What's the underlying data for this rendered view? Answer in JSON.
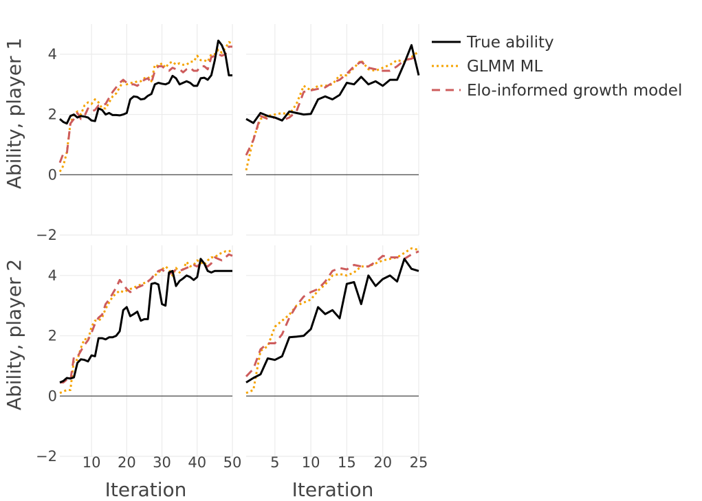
{
  "chart_data": {
    "type": "line",
    "legend": [
      {
        "name": "True ability",
        "color": "#000000",
        "dash": "solid"
      },
      {
        "name": "GLMM ML",
        "color": "#f5a300",
        "dash": "dot"
      },
      {
        "name": "Elo-informed growth model",
        "color": "#cd5c5c",
        "dash": "dash"
      }
    ],
    "legend_position": "top-right",
    "ylabels": [
      "Ability, player 1",
      "Ability, player 2"
    ],
    "xlabel": "Iteration",
    "ylim": [
      -2,
      5
    ],
    "yticks": [
      -2,
      0,
      2,
      4
    ],
    "panels": [
      {
        "row": 0,
        "col": 0,
        "xlim": [
          1,
          50
        ],
        "xticks": [
          10,
          20,
          30,
          40,
          50
        ],
        "series": [
          {
            "name": "True ability",
            "x": [
              1,
              2,
              3,
              4,
              5,
              6,
              7,
              8,
              9,
              10,
              11,
              12,
              13,
              14,
              15,
              16,
              17,
              18,
              19,
              20,
              21,
              22,
              23,
              24,
              25,
              26,
              27,
              28,
              29,
              30,
              31,
              32,
              33,
              34,
              35,
              36,
              37,
              38,
              39,
              40,
              41,
              42,
              43,
              44,
              45,
              46,
              47,
              48,
              49,
              50
            ],
            "y": [
              1.85,
              1.75,
              1.7,
              1.95,
              2.0,
              1.9,
              1.95,
              1.93,
              1.9,
              1.8,
              1.78,
              2.2,
              2.15,
              2.0,
              2.05,
              1.98,
              1.98,
              1.97,
              2.0,
              2.05,
              2.5,
              2.6,
              2.58,
              2.5,
              2.52,
              2.62,
              2.68,
              3.0,
              3.05,
              3.02,
              3.0,
              3.05,
              3.28,
              3.2,
              3.0,
              3.05,
              3.1,
              3.05,
              2.95,
              2.95,
              3.2,
              3.22,
              3.15,
              3.3,
              3.8,
              4.45,
              4.3,
              4.0,
              3.3,
              3.3
            ]
          },
          {
            "name": "GLMM ML",
            "x": [
              1,
              2,
              3,
              4,
              5,
              6,
              7,
              8,
              9,
              10,
              11,
              12,
              13,
              14,
              15,
              16,
              17,
              18,
              19,
              20,
              21,
              22,
              23,
              24,
              25,
              26,
              27,
              28,
              29,
              30,
              31,
              32,
              33,
              34,
              35,
              36,
              37,
              38,
              39,
              40,
              41,
              42,
              43,
              44,
              45,
              46,
              47,
              48,
              49,
              50
            ],
            "y": [
              0.1,
              0.3,
              0.75,
              1.7,
              2.0,
              2.1,
              2.0,
              2.3,
              2.4,
              2.35,
              2.5,
              2.4,
              2.2,
              2.2,
              2.4,
              2.6,
              2.7,
              2.9,
              3.1,
              3.0,
              3.05,
              3.05,
              3.1,
              3.1,
              3.2,
              3.25,
              3.1,
              3.65,
              3.6,
              3.7,
              3.55,
              3.7,
              3.75,
              3.65,
              3.7,
              3.65,
              3.65,
              3.75,
              3.75,
              3.95,
              3.8,
              3.8,
              3.75,
              4.0,
              4.0,
              4.15,
              4.05,
              4.2,
              4.4,
              4.35
            ]
          },
          {
            "name": "Elo-informed growth model",
            "x": [
              1,
              2,
              3,
              4,
              5,
              6,
              7,
              8,
              9,
              10,
              11,
              12,
              13,
              14,
              15,
              16,
              17,
              18,
              19,
              20,
              21,
              22,
              23,
              24,
              25,
              26,
              27,
              28,
              29,
              30,
              31,
              32,
              33,
              34,
              35,
              36,
              37,
              38,
              39,
              40,
              41,
              42,
              43,
              44,
              45,
              46,
              47,
              48,
              49,
              50
            ],
            "y": [
              0.4,
              0.7,
              0.7,
              1.7,
              1.85,
              2.05,
              1.85,
              1.95,
              2.2,
              2.1,
              2.15,
              2.3,
              2.3,
              2.35,
              2.55,
              2.75,
              2.9,
              3.05,
              3.15,
              3.05,
              3.0,
              3.0,
              2.95,
              3.05,
              3.15,
              3.2,
              3.05,
              3.45,
              3.6,
              3.6,
              3.5,
              3.45,
              3.55,
              3.5,
              3.5,
              3.4,
              3.5,
              3.55,
              3.45,
              3.45,
              3.6,
              3.6,
              3.5,
              3.9,
              3.95,
              4.0,
              3.95,
              4.0,
              4.25,
              4.25
            ]
          }
        ]
      },
      {
        "row": 0,
        "col": 1,
        "xlim": [
          1,
          25
        ],
        "xticks": [
          5,
          10,
          15,
          20,
          25
        ],
        "series": [
          {
            "name": "True ability",
            "x": [
              1,
              2,
              3,
              4,
              5,
              6,
              7,
              8,
              9,
              10,
              11,
              12,
              13,
              14,
              15,
              16,
              17,
              18,
              19,
              20,
              21,
              22,
              23,
              24,
              25
            ],
            "y": [
              1.85,
              1.72,
              2.05,
              1.95,
              1.9,
              1.8,
              2.1,
              2.05,
              2.0,
              2.02,
              2.5,
              2.6,
              2.5,
              2.65,
              3.05,
              3.0,
              3.25,
              3.0,
              3.1,
              2.95,
              3.15,
              3.15,
              3.7,
              4.3,
              3.3
            ]
          },
          {
            "name": "GLMM ML",
            "x": [
              1,
              2,
              3,
              4,
              5,
              6,
              7,
              8,
              9,
              10,
              11,
              12,
              13,
              14,
              15,
              16,
              17,
              18,
              19,
              20,
              21,
              22,
              23,
              24,
              25
            ],
            "y": [
              0.15,
              1.2,
              1.85,
              1.95,
              2.0,
              2.05,
              2.0,
              2.35,
              2.95,
              2.8,
              2.95,
              2.95,
              3.0,
              3.3,
              3.3,
              3.55,
              3.8,
              3.5,
              3.45,
              3.55,
              3.65,
              3.8,
              3.75,
              3.9,
              4.1
            ]
          },
          {
            "name": "Elo-informed growth model",
            "x": [
              1,
              2,
              3,
              4,
              5,
              6,
              7,
              8,
              9,
              10,
              11,
              12,
              13,
              14,
              15,
              16,
              17,
              18,
              19,
              20,
              21,
              22,
              23,
              24,
              25
            ],
            "y": [
              0.65,
              1.15,
              1.95,
              1.85,
              1.9,
              1.8,
              1.9,
              2.1,
              2.75,
              2.8,
              2.85,
              2.9,
              3.05,
              3.15,
              3.35,
              3.6,
              3.75,
              3.55,
              3.5,
              3.45,
              3.45,
              3.6,
              3.8,
              3.85,
              3.95
            ]
          }
        ]
      },
      {
        "row": 1,
        "col": 0,
        "xlim": [
          1,
          50
        ],
        "xticks": [
          10,
          20,
          30,
          40,
          50
        ],
        "series": [
          {
            "name": "True ability",
            "x": [
              1,
              2,
              3,
              4,
              5,
              6,
              7,
              8,
              9,
              10,
              11,
              12,
              13,
              14,
              15,
              16,
              17,
              18,
              19,
              20,
              21,
              22,
              23,
              24,
              25,
              26,
              27,
              28,
              29,
              30,
              31,
              32,
              33,
              34,
              35,
              36,
              37,
              38,
              39,
              40,
              41,
              42,
              43,
              44,
              45,
              46,
              47,
              48,
              49,
              50
            ],
            "y": [
              0.45,
              0.5,
              0.6,
              0.58,
              0.62,
              1.1,
              1.22,
              1.2,
              1.15,
              1.35,
              1.32,
              1.92,
              1.92,
              1.88,
              1.95,
              1.95,
              2.0,
              2.15,
              2.85,
              2.95,
              2.65,
              2.72,
              2.8,
              2.5,
              2.55,
              2.55,
              3.72,
              3.75,
              3.7,
              3.05,
              3.0,
              4.1,
              4.15,
              3.65,
              3.82,
              3.9,
              4.0,
              3.95,
              3.85,
              3.95,
              4.55,
              4.4,
              4.15,
              4.1,
              4.15,
              4.15,
              4.15,
              4.15,
              4.15,
              4.15
            ]
          },
          {
            "name": "GLMM ML",
            "x": [
              1,
              2,
              3,
              4,
              5,
              6,
              7,
              8,
              9,
              10,
              11,
              12,
              13,
              14,
              15,
              16,
              17,
              18,
              19,
              20,
              21,
              22,
              23,
              24,
              25,
              26,
              27,
              28,
              29,
              30,
              31,
              32,
              33,
              34,
              35,
              36,
              37,
              38,
              39,
              40,
              41,
              42,
              43,
              44,
              45,
              46,
              47,
              48,
              49,
              50
            ],
            "y": [
              0.1,
              0.15,
              0.2,
              0.2,
              1.2,
              1.2,
              1.6,
              1.9,
              1.85,
              2.3,
              2.5,
              2.5,
              2.6,
              2.9,
              3.1,
              3.3,
              3.4,
              3.5,
              3.45,
              3.5,
              3.55,
              3.6,
              3.65,
              3.7,
              3.75,
              3.8,
              3.9,
              4.0,
              4.1,
              4.2,
              4.3,
              4.2,
              4.0,
              4.25,
              4.1,
              4.2,
              4.45,
              4.3,
              4.35,
              4.5,
              4.45,
              4.35,
              4.5,
              4.6,
              4.6,
              4.7,
              4.75,
              4.8,
              4.8,
              4.85
            ]
          },
          {
            "name": "Elo-informed growth model",
            "x": [
              1,
              2,
              3,
              4,
              5,
              6,
              7,
              8,
              9,
              10,
              11,
              12,
              13,
              14,
              15,
              16,
              17,
              18,
              19,
              20,
              21,
              22,
              23,
              24,
              25,
              26,
              27,
              28,
              29,
              30,
              31,
              32,
              33,
              34,
              35,
              36,
              37,
              38,
              39,
              40,
              41,
              42,
              43,
              44,
              45,
              46,
              47,
              48,
              49,
              50
            ],
            "y": [
              0.45,
              0.45,
              0.55,
              0.5,
              1.3,
              1.3,
              1.5,
              1.7,
              1.85,
              2.1,
              2.4,
              2.6,
              2.7,
              3.05,
              3.2,
              3.4,
              3.6,
              3.85,
              3.7,
              3.55,
              3.45,
              3.5,
              3.6,
              3.65,
              3.7,
              3.8,
              3.9,
              4.05,
              4.15,
              4.2,
              4.1,
              4.05,
              4.1,
              4.2,
              4.15,
              4.2,
              4.25,
              4.3,
              4.35,
              4.3,
              4.4,
              4.35,
              4.3,
              4.4,
              4.6,
              4.55,
              4.5,
              4.6,
              4.7,
              4.65
            ]
          }
        ]
      },
      {
        "row": 1,
        "col": 1,
        "xlim": [
          1,
          25
        ],
        "xticks": [
          5,
          10,
          15,
          20,
          25
        ],
        "series": [
          {
            "name": "True ability",
            "x": [
              1,
              2,
              3,
              4,
              5,
              6,
              7,
              8,
              9,
              10,
              11,
              12,
              13,
              14,
              15,
              16,
              17,
              18,
              19,
              20,
              21,
              22,
              23,
              24,
              25
            ],
            "y": [
              0.45,
              0.6,
              0.72,
              1.25,
              1.2,
              1.32,
              1.95,
              1.97,
              2.0,
              2.22,
              2.95,
              2.72,
              2.85,
              2.58,
              3.72,
              3.78,
              3.05,
              4.0,
              3.65,
              3.88,
              4.0,
              3.8,
              4.55,
              4.22,
              4.15
            ]
          },
          {
            "name": "GLMM ML",
            "x": [
              1,
              2,
              3,
              4,
              5,
              6,
              7,
              8,
              9,
              10,
              11,
              12,
              13,
              14,
              15,
              16,
              17,
              18,
              19,
              20,
              21,
              22,
              23,
              24,
              25
            ],
            "y": [
              0.1,
              0.2,
              1.5,
              1.65,
              2.3,
              2.5,
              2.7,
              3.0,
              3.1,
              3.2,
              3.5,
              3.7,
              4.0,
              4.05,
              4.0,
              4.1,
              4.3,
              4.3,
              4.4,
              4.5,
              4.55,
              4.6,
              4.75,
              4.9,
              4.85
            ]
          },
          {
            "name": "Elo-informed growth model",
            "x": [
              1,
              2,
              3,
              4,
              5,
              6,
              7,
              8,
              9,
              10,
              11,
              12,
              13,
              14,
              15,
              16,
              17,
              18,
              19,
              20,
              21,
              22,
              23,
              24,
              25
            ],
            "y": [
              0.65,
              0.9,
              1.55,
              1.75,
              1.75,
              2.05,
              2.6,
              3.0,
              3.3,
              3.45,
              3.55,
              3.8,
              4.15,
              4.25,
              4.2,
              4.35,
              4.3,
              4.3,
              4.45,
              4.65,
              4.6,
              4.6,
              4.55,
              4.7,
              4.8
            ]
          }
        ]
      }
    ]
  }
}
